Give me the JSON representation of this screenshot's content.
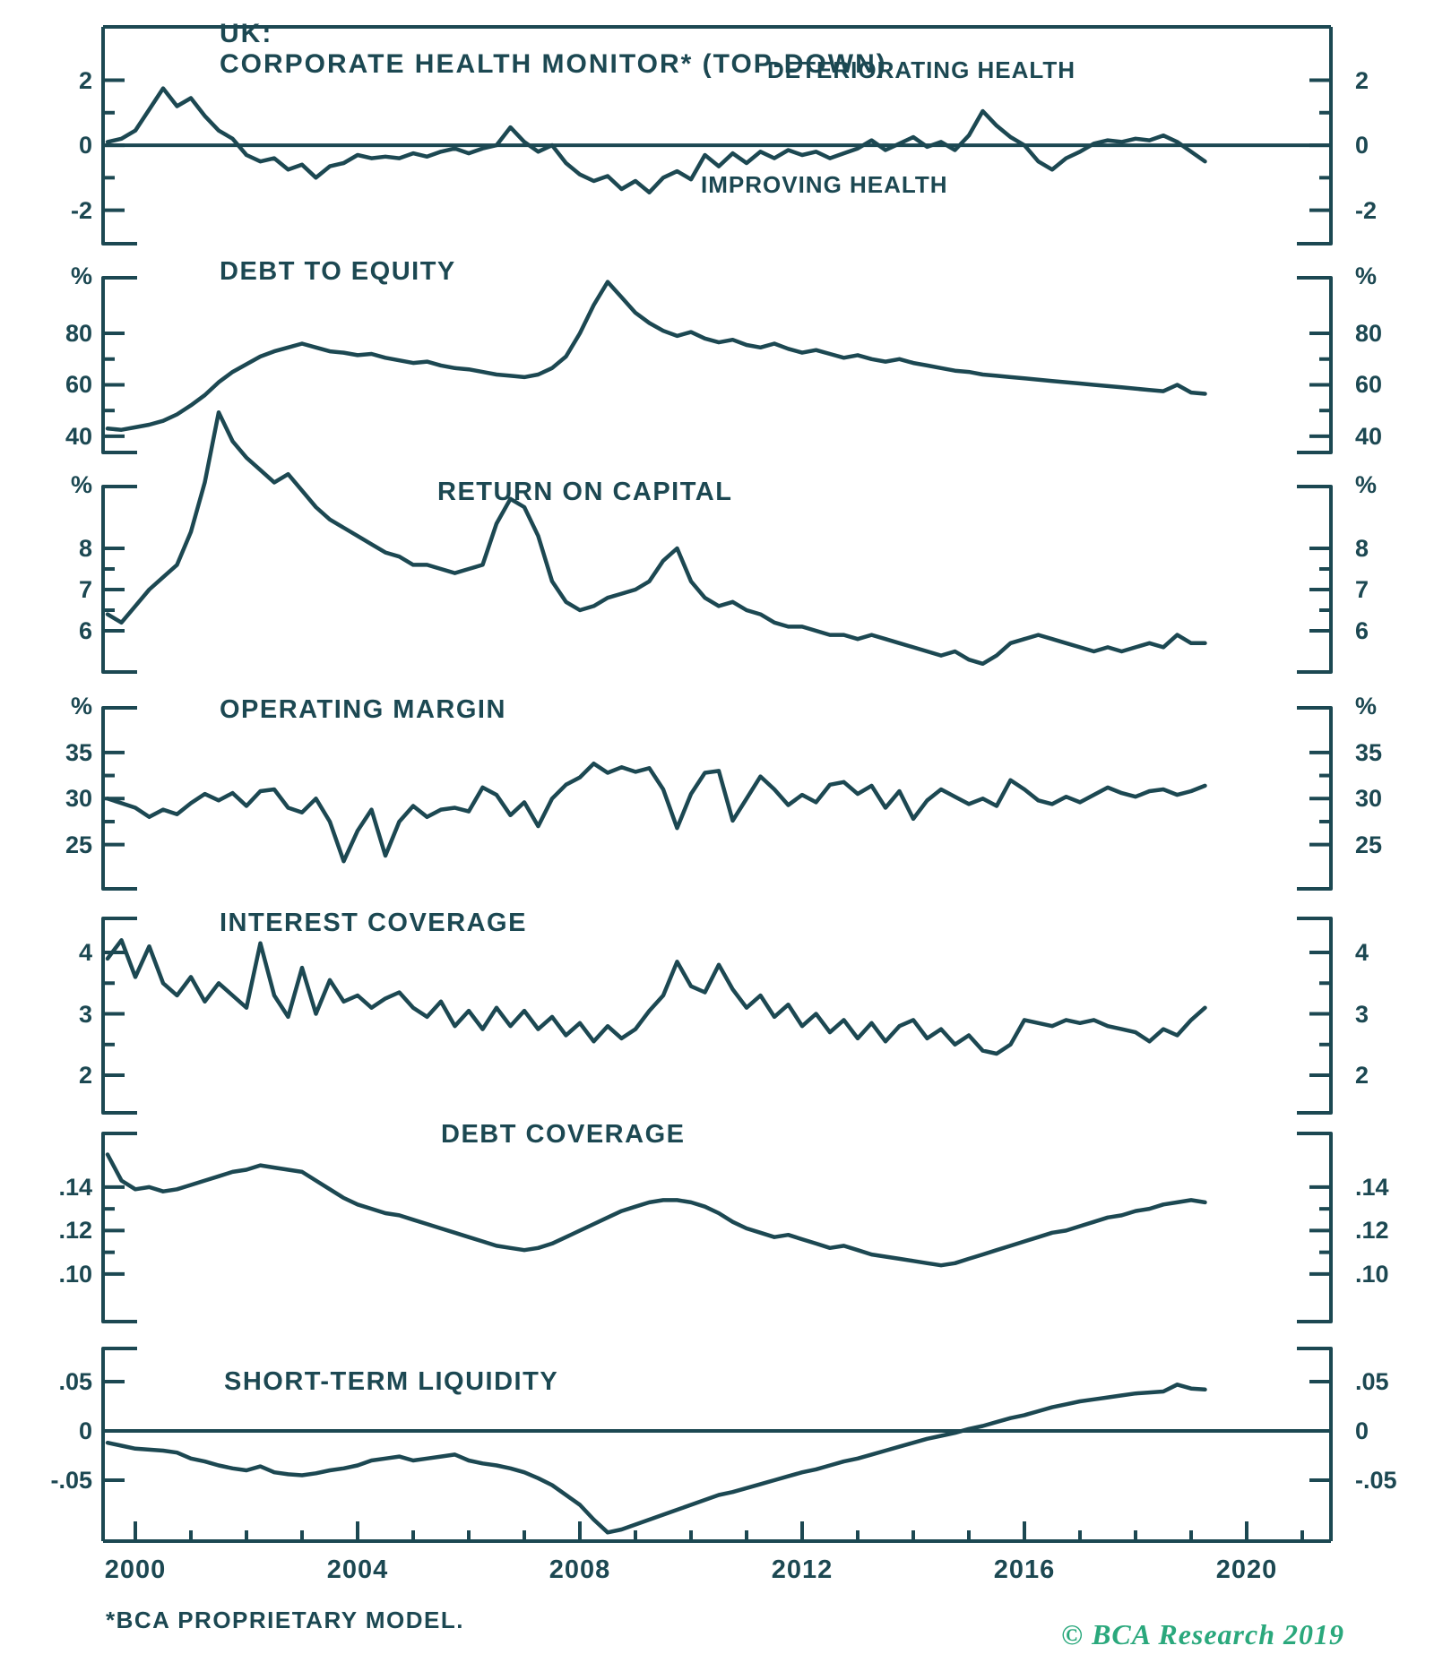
{
  "header": {
    "region_label": "UK:",
    "title": "CORPORATE HEALTH MONITOR* (TOP-DOWN)"
  },
  "annotations": {
    "deteriorating": "DETERIORATING HEALTH",
    "improving": "IMPROVING HEALTH"
  },
  "footnote": "*BCA PROPRIETARY MODEL.",
  "copyright": "© BCA Research 2019",
  "colors": {
    "line": "#1c4852",
    "accent_green": "#2aa87c",
    "background": "#ffffff"
  },
  "x_axis": {
    "tick_labels": [
      "2000",
      "2004",
      "2008",
      "2012",
      "2016",
      "2020"
    ],
    "tick_years": [
      2000,
      2004,
      2008,
      2012,
      2016,
      2020
    ],
    "minor_tick_interval_years": 1
  },
  "chart_data": {
    "type": "line",
    "x_years": [
      1999.5,
      1999.75,
      2000,
      2000.25,
      2000.5,
      2000.75,
      2001,
      2001.25,
      2001.5,
      2001.75,
      2002,
      2002.25,
      2002.5,
      2002.75,
      2003,
      2003.25,
      2003.5,
      2003.75,
      2004,
      2004.25,
      2004.5,
      2004.75,
      2005,
      2005.25,
      2005.5,
      2005.75,
      2006,
      2006.25,
      2006.5,
      2006.75,
      2007,
      2007.25,
      2007.5,
      2007.75,
      2008,
      2008.25,
      2008.5,
      2008.75,
      2009,
      2009.25,
      2009.5,
      2009.75,
      2010,
      2010.25,
      2010.5,
      2010.75,
      2011,
      2011.25,
      2011.5,
      2011.75,
      2012,
      2012.25,
      2012.5,
      2012.75,
      2013,
      2013.25,
      2013.5,
      2013.75,
      2014,
      2014.25,
      2014.5,
      2014.75,
      2015,
      2015.25,
      2015.5,
      2015.75,
      2016,
      2016.25,
      2016.5,
      2016.75,
      2017,
      2017.25,
      2017.5,
      2017.75,
      2018,
      2018.25,
      2018.5,
      2018.75,
      2019,
      2019.25
    ],
    "panels": [
      {
        "title": "",
        "unit": null,
        "zero_line": true,
        "ylim": [
          -3.03,
          3.64
        ],
        "y_ticks": [
          {
            "label": "2",
            "v": 2,
            "major": true
          },
          {
            "v": 1,
            "major": false
          },
          {
            "label": "0",
            "v": 0,
            "major": true
          },
          {
            "v": -1,
            "major": false
          },
          {
            "label": "-2",
            "v": -2,
            "major": true
          }
        ],
        "values": [
          0.1,
          0.2,
          0.45,
          1.1,
          1.75,
          1.2,
          1.45,
          0.9,
          0.45,
          0.2,
          -0.3,
          -0.5,
          -0.4,
          -0.75,
          -0.6,
          -1.0,
          -0.65,
          -0.55,
          -0.3,
          -0.4,
          -0.35,
          -0.4,
          -0.25,
          -0.35,
          -0.2,
          -0.1,
          -0.25,
          -0.1,
          0.0,
          0.55,
          0.1,
          -0.2,
          0.0,
          -0.55,
          -0.9,
          -1.1,
          -0.95,
          -1.35,
          -1.1,
          -1.45,
          -1.0,
          -0.8,
          -1.05,
          -0.3,
          -0.65,
          -0.25,
          -0.55,
          -0.2,
          -0.4,
          -0.15,
          -0.3,
          -0.2,
          -0.4,
          -0.25,
          -0.1,
          0.15,
          -0.15,
          0.05,
          0.25,
          -0.05,
          0.1,
          -0.15,
          0.3,
          1.05,
          0.6,
          0.25,
          0.0,
          -0.5,
          -0.75,
          -0.4,
          -0.2,
          0.05,
          0.15,
          0.1,
          0.2,
          0.15,
          0.3,
          0.1,
          -0.2,
          -0.5
        ]
      },
      {
        "title": "DEBT TO EQUITY",
        "unit": "%",
        "zero_line": false,
        "ylim": [
          33.7,
          101.6
        ],
        "y_ticks": [
          {
            "label": "80",
            "v": 80,
            "major": true
          },
          {
            "v": 70,
            "major": false
          },
          {
            "label": "60",
            "v": 60,
            "major": true
          },
          {
            "v": 50,
            "major": false
          },
          {
            "label": "40",
            "v": 40,
            "major": true
          }
        ],
        "values": [
          43,
          42.5,
          43.5,
          44.5,
          46,
          48.5,
          52,
          56,
          61,
          65,
          68,
          71,
          73,
          74.5,
          76,
          74.5,
          73,
          72.5,
          71.5,
          72,
          70.5,
          69.5,
          68.5,
          69,
          67.5,
          66.5,
          66,
          65,
          64,
          63.5,
          63,
          64,
          66.5,
          71,
          80,
          91,
          100,
          94,
          88,
          84,
          81,
          79,
          80.5,
          78,
          76.5,
          77.5,
          75.5,
          74.5,
          76,
          74,
          72.5,
          73.5,
          72,
          70.5,
          71.5,
          70,
          69,
          70,
          68.5,
          67.5,
          66.5,
          65.5,
          65,
          64,
          63.5,
          63,
          62.5,
          62,
          61.5,
          61,
          60.5,
          60,
          59.5,
          59,
          58.5,
          58,
          57.5,
          60,
          57,
          56.5
        ]
      },
      {
        "title": "RETURN ON CAPITAL",
        "unit": "%",
        "zero_line": false,
        "ylim": [
          5.0,
          9.5
        ],
        "y_ticks": [
          {
            "label": "8",
            "v": 8,
            "major": true
          },
          {
            "v": 7.5,
            "major": false
          },
          {
            "label": "7",
            "v": 7,
            "major": true
          },
          {
            "v": 6.5,
            "major": false
          },
          {
            "label": "6",
            "v": 6,
            "major": true
          }
        ],
        "values": [
          6.4,
          6.2,
          6.6,
          7.0,
          7.3,
          7.6,
          8.4,
          9.6,
          11.3,
          10.6,
          10.2,
          9.9,
          9.6,
          9.8,
          9.4,
          9.0,
          8.7,
          8.5,
          8.3,
          8.1,
          7.9,
          7.8,
          7.6,
          7.6,
          7.5,
          7.4,
          7.5,
          7.6,
          8.6,
          9.2,
          9.0,
          8.3,
          7.2,
          6.7,
          6.5,
          6.6,
          6.8,
          6.9,
          7.0,
          7.2,
          7.7,
          8.0,
          7.2,
          6.8,
          6.6,
          6.7,
          6.5,
          6.4,
          6.2,
          6.1,
          6.1,
          6.0,
          5.9,
          5.9,
          5.8,
          5.9,
          5.8,
          5.7,
          5.6,
          5.5,
          5.4,
          5.5,
          5.3,
          5.2,
          5.4,
          5.7,
          5.8,
          5.9,
          5.8,
          5.7,
          5.6,
          5.5,
          5.6,
          5.5,
          5.6,
          5.7,
          5.6,
          5.9,
          5.7,
          5.7
        ]
      },
      {
        "title": "OPERATING MARGIN",
        "unit": "%",
        "zero_line": false,
        "ylim": [
          20.2,
          39.85
        ],
        "y_ticks": [
          {
            "label": "35",
            "v": 35,
            "major": true
          },
          {
            "v": 32.5,
            "major": false
          },
          {
            "label": "30",
            "v": 30,
            "major": true
          },
          {
            "v": 27.5,
            "major": false
          },
          {
            "label": "25",
            "v": 25,
            "major": true
          }
        ],
        "values": [
          30.0,
          29.5,
          29.0,
          28.0,
          28.8,
          28.3,
          29.5,
          30.5,
          29.8,
          30.6,
          29.2,
          30.8,
          31.0,
          29.0,
          28.5,
          30.0,
          27.5,
          23.2,
          26.5,
          28.8,
          23.8,
          27.5,
          29.2,
          28.0,
          28.8,
          29.0,
          28.6,
          31.2,
          30.4,
          28.2,
          29.6,
          27.0,
          30.0,
          31.5,
          32.3,
          33.8,
          32.8,
          33.4,
          32.9,
          33.3,
          31.0,
          26.8,
          30.5,
          32.8,
          33.0,
          27.6,
          30.0,
          32.4,
          31.0,
          29.3,
          30.4,
          29.6,
          31.5,
          31.8,
          30.5,
          31.4,
          29.0,
          30.8,
          27.8,
          29.8,
          31.0,
          30.2,
          29.4,
          30.0,
          29.2,
          32.0,
          31.0,
          29.8,
          29.4,
          30.2,
          29.6,
          30.4,
          31.2,
          30.6,
          30.2,
          30.8,
          31.0,
          30.4,
          30.8,
          31.4
        ]
      },
      {
        "title": "INTEREST COVERAGE",
        "unit": null,
        "zero_line": false,
        "ylim": [
          1.387,
          4.555
        ],
        "y_ticks": [
          {
            "label": "4",
            "v": 4,
            "major": true
          },
          {
            "v": 3.5,
            "major": false
          },
          {
            "label": "3",
            "v": 3,
            "major": true
          },
          {
            "v": 2.5,
            "major": false
          },
          {
            "label": "2",
            "v": 2,
            "major": true
          }
        ],
        "values": [
          3.9,
          4.2,
          3.6,
          4.1,
          3.5,
          3.3,
          3.6,
          3.2,
          3.5,
          3.3,
          3.1,
          4.15,
          3.3,
          2.95,
          3.75,
          3.0,
          3.55,
          3.2,
          3.3,
          3.1,
          3.25,
          3.35,
          3.1,
          2.95,
          3.2,
          2.8,
          3.05,
          2.75,
          3.1,
          2.8,
          3.05,
          2.75,
          2.95,
          2.65,
          2.85,
          2.55,
          2.8,
          2.6,
          2.75,
          3.05,
          3.3,
          3.85,
          3.45,
          3.35,
          3.8,
          3.4,
          3.1,
          3.3,
          2.95,
          3.15,
          2.8,
          3.0,
          2.7,
          2.9,
          2.6,
          2.85,
          2.55,
          2.8,
          2.9,
          2.6,
          2.75,
          2.5,
          2.65,
          2.4,
          2.35,
          2.5,
          2.9,
          2.85,
          2.8,
          2.9,
          2.85,
          2.9,
          2.8,
          2.75,
          2.7,
          2.55,
          2.75,
          2.65,
          2.9,
          3.1
        ]
      },
      {
        "title": "DEBT COVERAGE",
        "unit": null,
        "zero_line": false,
        "ylim": [
          0.0781,
          0.1647
        ],
        "y_ticks": [
          {
            "label": ".14",
            "v": 0.14,
            "major": true
          },
          {
            "v": 0.13,
            "major": false
          },
          {
            "label": ".12",
            "v": 0.12,
            "major": true
          },
          {
            "v": 0.11,
            "major": false
          },
          {
            "label": ".10",
            "v": 0.1,
            "major": true
          }
        ],
        "values": [
          0.155,
          0.143,
          0.139,
          0.14,
          0.138,
          0.139,
          0.141,
          0.143,
          0.145,
          0.147,
          0.148,
          0.15,
          0.149,
          0.148,
          0.147,
          0.143,
          0.139,
          0.135,
          0.132,
          0.13,
          0.128,
          0.127,
          0.125,
          0.123,
          0.121,
          0.119,
          0.117,
          0.115,
          0.113,
          0.112,
          0.111,
          0.112,
          0.114,
          0.117,
          0.12,
          0.123,
          0.126,
          0.129,
          0.131,
          0.133,
          0.134,
          0.134,
          0.133,
          0.131,
          0.128,
          0.124,
          0.121,
          0.119,
          0.117,
          0.118,
          0.116,
          0.114,
          0.112,
          0.113,
          0.111,
          0.109,
          0.108,
          0.107,
          0.106,
          0.105,
          0.104,
          0.105,
          0.107,
          0.109,
          0.111,
          0.113,
          0.115,
          0.117,
          0.119,
          0.12,
          0.122,
          0.124,
          0.126,
          0.127,
          0.129,
          0.13,
          0.132,
          0.133,
          0.134,
          0.133
        ]
      },
      {
        "title": "SHORT-TERM LIQUIDITY",
        "unit": null,
        "zero_line": true,
        "ylim": [
          -0.1118,
          0.0836
        ],
        "y_ticks": [
          {
            "label": ".05",
            "v": 0.05,
            "major": true
          },
          {
            "label": "0",
            "v": 0,
            "major": true
          },
          {
            "label": "-.05",
            "v": -0.05,
            "major": true
          }
        ],
        "values": [
          -0.012,
          -0.015,
          -0.018,
          -0.019,
          -0.02,
          -0.022,
          -0.028,
          -0.031,
          -0.035,
          -0.038,
          -0.04,
          -0.036,
          -0.042,
          -0.044,
          -0.045,
          -0.043,
          -0.04,
          -0.038,
          -0.035,
          -0.03,
          -0.028,
          -0.026,
          -0.03,
          -0.028,
          -0.026,
          -0.024,
          -0.03,
          -0.033,
          -0.035,
          -0.038,
          -0.042,
          -0.048,
          -0.055,
          -0.065,
          -0.075,
          -0.09,
          -0.103,
          -0.1,
          -0.095,
          -0.09,
          -0.085,
          -0.08,
          -0.075,
          -0.07,
          -0.065,
          -0.062,
          -0.058,
          -0.054,
          -0.05,
          -0.046,
          -0.042,
          -0.039,
          -0.035,
          -0.031,
          -0.028,
          -0.024,
          -0.02,
          -0.016,
          -0.012,
          -0.008,
          -0.005,
          -0.002,
          0.002,
          0.005,
          0.009,
          0.013,
          0.016,
          0.02,
          0.024,
          0.027,
          0.03,
          0.032,
          0.034,
          0.036,
          0.038,
          0.039,
          0.04,
          0.047,
          0.043,
          0.042
        ]
      }
    ]
  }
}
